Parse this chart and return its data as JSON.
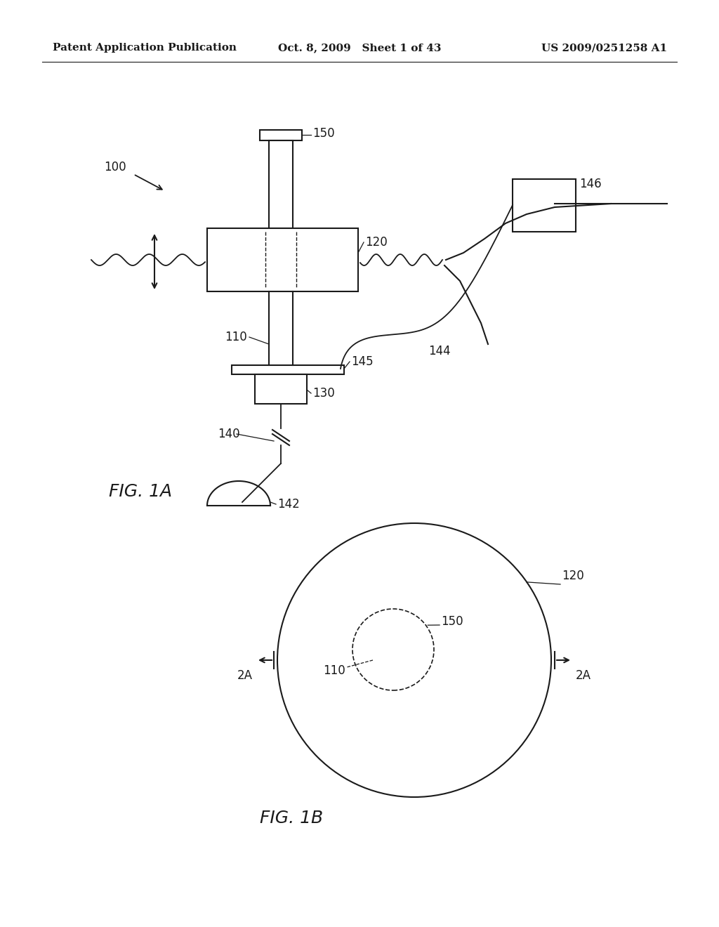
{
  "background_color": "#ffffff",
  "line_color": "#1a1a1a",
  "header_left": "Patent Application Publication",
  "header_mid": "Oct. 8, 2009   Sheet 1 of 43",
  "header_right": "US 2009/0251258 A1",
  "fig1a_label": "FIG. 1A",
  "fig1b_label": "FIG. 1B",
  "lw": 1.5
}
